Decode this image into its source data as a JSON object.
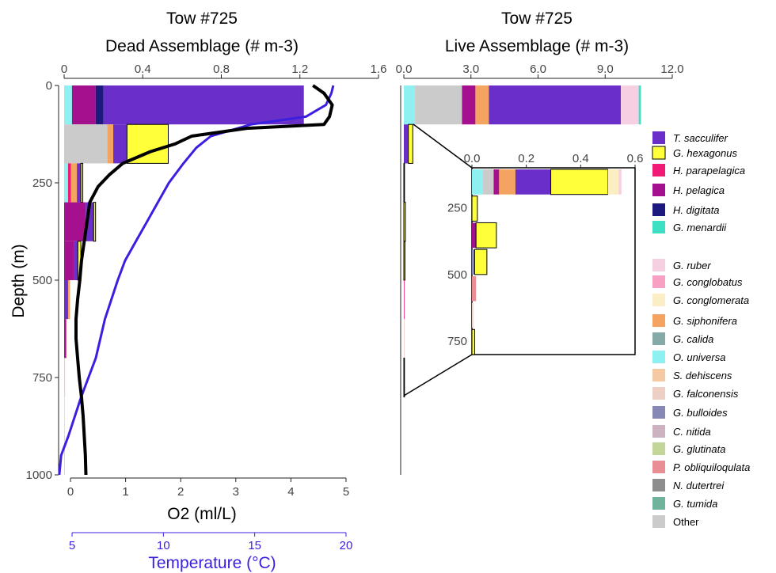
{
  "chart_data": [
    {
      "type": "bar",
      "orientation": "horizontal-stacked",
      "title": "Tow #725",
      "subtitle": "Dead Assemblage (# m-3)",
      "top_axis": {
        "ticks": [
          "0",
          "0.4",
          "0.8",
          "1.2",
          "1.6"
        ],
        "range": [
          0,
          1.6
        ]
      },
      "y_axis": {
        "label": "Depth (m)",
        "ticks": [
          "0",
          "250",
          "500",
          "750",
          "1000"
        ],
        "range": [
          0,
          1000
        ],
        "reversed": true
      },
      "bottom_axis_o2": {
        "label": "O2 (ml/L)",
        "ticks": [
          "0",
          "1",
          "2",
          "3",
          "4",
          "5"
        ],
        "range": [
          0,
          5
        ]
      },
      "bottom_axis_temp": {
        "label": "Temperature (°C)",
        "ticks": [
          "5",
          "10",
          "15",
          "20"
        ],
        "range": [
          5,
          20
        ],
        "color": "#3a1fe0"
      },
      "depth_bins": [
        {
          "top": 0,
          "bottom": 100,
          "segments": [
            {
              "species": "O. universa",
              "value": 0.04
            },
            {
              "species": "H. pelagica",
              "value": 0.12
            },
            {
              "species": "H. digitata",
              "value": 0.04
            },
            {
              "species": "T. sacculifer",
              "value": 1.02
            }
          ]
        },
        {
          "top": 100,
          "bottom": 200,
          "segments": [
            {
              "species": "Other",
              "value": 0.22
            },
            {
              "species": "G. siphonifera",
              "value": 0.03
            },
            {
              "species": "T. sacculifer",
              "value": 0.07
            },
            {
              "species": "G. hexagonus",
              "value": 0.21
            }
          ]
        },
        {
          "top": 200,
          "bottom": 300,
          "segments": [
            {
              "species": "O. universa",
              "value": 0.02
            },
            {
              "species": "H. parapelagica",
              "value": 0.015
            },
            {
              "species": "G. siphonifera",
              "value": 0.03
            },
            {
              "species": "T. sacculifer",
              "value": 0.02
            },
            {
              "species": "G. hexagonus",
              "value": 0.01
            }
          ]
        },
        {
          "top": 300,
          "bottom": 400,
          "segments": [
            {
              "species": "H. pelagica",
              "value": 0.11
            },
            {
              "species": "T. sacculifer",
              "value": 0.04
            },
            {
              "species": "G. hexagonus",
              "value": 0.01
            }
          ]
        },
        {
          "top": 400,
          "bottom": 500,
          "segments": [
            {
              "species": "H. pelagica",
              "value": 0.05
            },
            {
              "species": "T. sacculifer",
              "value": 0.02
            },
            {
              "species": "G. hexagonus",
              "value": 0.015
            }
          ]
        },
        {
          "top": 500,
          "bottom": 600,
          "segments": [
            {
              "species": "T. sacculifer",
              "value": 0.02
            },
            {
              "species": "G. siphonifera",
              "value": 0.01
            }
          ]
        },
        {
          "top": 600,
          "bottom": 700,
          "segments": [
            {
              "species": "H. pelagica",
              "value": 0.01
            },
            {
              "species": "G. falconensis",
              "value": 0.005
            }
          ]
        },
        {
          "top": 700,
          "bottom": 800,
          "segments": [
            {
              "species": "G. falconensis",
              "value": 0.005
            }
          ]
        },
        {
          "top": 800,
          "bottom": 900,
          "segments": [
            {
              "species": "G. falconensis",
              "value": 0.003
            }
          ]
        },
        {
          "top": 900,
          "bottom": 1000,
          "segments": [
            {
              "species": "G. falconensis",
              "value": 0.004
            }
          ]
        }
      ],
      "o2_profile": {
        "depth": [
          0,
          20,
          50,
          80,
          100,
          110,
          130,
          150,
          170,
          200,
          230,
          260,
          300,
          350,
          400,
          450,
          500,
          550,
          600,
          650,
          700,
          750,
          800,
          850,
          900,
          950,
          1000
        ],
        "o2": [
          4.4,
          4.6,
          4.75,
          4.7,
          4.6,
          3.2,
          2.2,
          1.9,
          1.45,
          0.95,
          0.7,
          0.5,
          0.35,
          0.3,
          0.25,
          0.2,
          0.17,
          0.13,
          0.1,
          0.1,
          0.13,
          0.16,
          0.2,
          0.23,
          0.25,
          0.27,
          0.28
        ]
      },
      "temperature_profile": {
        "depth": [
          0,
          20,
          50,
          80,
          100,
          130,
          160,
          200,
          250,
          300,
          350,
          400,
          450,
          500,
          600,
          700,
          800,
          900,
          950,
          1000
        ],
        "temp": [
          19.3,
          19.2,
          18.9,
          17.8,
          14.8,
          12.6,
          11.8,
          11.1,
          10.3,
          9.7,
          9.1,
          8.5,
          7.9,
          7.5,
          6.8,
          6.3,
          5.5,
          4.8,
          4.4,
          4.3
        ]
      }
    },
    {
      "type": "bar",
      "orientation": "horizontal-stacked",
      "title": "Tow #725",
      "subtitle": "Live Assemblage (# m-3)",
      "top_axis": {
        "ticks": [
          "0.0",
          "3.0",
          "6.0",
          "9.0",
          "12.0"
        ],
        "range": [
          0,
          12
        ]
      },
      "depth_bins": [
        {
          "top": 0,
          "bottom": 100,
          "segments": [
            {
              "species": "O. universa",
              "value": 0.5
            },
            {
              "species": "Other",
              "value": 2.1
            },
            {
              "species": "H. pelagica",
              "value": 0.6
            },
            {
              "species": "G. siphonifera",
              "value": 0.6
            },
            {
              "species": "T. sacculifer",
              "value": 5.9
            },
            {
              "species": "G. ruber",
              "value": 0.8
            },
            {
              "species": "G. menardii",
              "value": 0.1
            }
          ]
        },
        {
          "top": 100,
          "bottom": 200,
          "segments": [
            {
              "species": "T. sacculifer",
              "value": 0.2
            },
            {
              "species": "G. hexagonus",
              "value": 0.2
            }
          ]
        },
        {
          "top": 200,
          "bottom": 300,
          "segments": [
            {
              "species": "G. hexagonus",
              "value": 0.03
            }
          ]
        },
        {
          "top": 300,
          "bottom": 400,
          "segments": [
            {
              "species": "G. hexagonus",
              "value": 0.07
            }
          ]
        },
        {
          "top": 400,
          "bottom": 500,
          "segments": [
            {
              "species": "G. hexagonus",
              "value": 0.05
            }
          ]
        },
        {
          "top": 500,
          "bottom": 600,
          "segments": [
            {
              "species": "H. parapelagica",
              "value": 0.01
            }
          ]
        },
        {
          "top": 600,
          "bottom": 700,
          "segments": [
            {
              "species": "G. falconensis",
              "value": 0.005
            }
          ]
        },
        {
          "top": 700,
          "bottom": 800,
          "segments": [
            {
              "species": "G. hexagonus",
              "value": 0.01
            }
          ]
        }
      ],
      "inset": {
        "top_axis": {
          "ticks": [
            "0.0",
            "0.2",
            "0.4",
            "0.6"
          ],
          "range": [
            0,
            0.6
          ]
        },
        "y_axis": {
          "ticks": [
            "250",
            "500",
            "750"
          ]
        },
        "depth_bins": [
          {
            "top": 100,
            "bottom": 200,
            "segments": [
              {
                "species": "O. universa",
                "value": 0.04
              },
              {
                "species": "Other",
                "value": 0.04
              },
              {
                "species": "H. pelagica",
                "value": 0.02
              },
              {
                "species": "G. siphonifera",
                "value": 0.06
              },
              {
                "species": "T. sacculifer",
                "value": 0.13
              },
              {
                "species": "G. hexagonus",
                "value": 0.21
              },
              {
                "species": "G. conglomerata",
                "value": 0.04
              },
              {
                "species": "G. ruber",
                "value": 0.01
              }
            ]
          },
          {
            "top": 200,
            "bottom": 300,
            "segments": [
              {
                "species": "G. hexagonus",
                "value": 0.02
              }
            ]
          },
          {
            "top": 300,
            "bottom": 400,
            "segments": [
              {
                "species": "H. pelagica",
                "value": 0.015
              },
              {
                "species": "G. hexagonus",
                "value": 0.075
              }
            ]
          },
          {
            "top": 400,
            "bottom": 500,
            "segments": [
              {
                "species": "G. bulloides",
                "value": 0.01
              },
              {
                "species": "G. hexagonus",
                "value": 0.045
              }
            ]
          },
          {
            "top": 500,
            "bottom": 600,
            "segments": [
              {
                "species": "P. obliquiloqulata",
                "value": 0.015
              }
            ]
          },
          {
            "top": 600,
            "bottom": 700,
            "segments": [
              {
                "species": "G. falconensis",
                "value": 0.005
              }
            ]
          },
          {
            "top": 700,
            "bottom": 800,
            "segments": [
              {
                "species": "G. hexagonus",
                "value": 0.01
              }
            ]
          }
        ]
      }
    }
  ],
  "legend": [
    {
      "name": "T. sacculifer",
      "color": "#6a2fc8",
      "italic": true
    },
    {
      "name": "G. hexagonus",
      "color": "#ffff3a",
      "italic": true,
      "outlined": true
    },
    {
      "name": "H. parapelagica",
      "color": "#f01b74",
      "italic": true
    },
    {
      "name": "H. pelagica",
      "color": "#a5108f",
      "italic": true
    },
    {
      "name": "H. digitata",
      "color": "#1c1a7e",
      "italic": true
    },
    {
      "name": "G. menardii",
      "color": "#3de0c2",
      "italic": true
    },
    {
      "name": "G. ruber",
      "color": "#f7cfe2",
      "italic": true
    },
    {
      "name": "G. conglobatus",
      "color": "#f7a0c4",
      "italic": true
    },
    {
      "name": "G. conglomerata",
      "color": "#fbedc4",
      "italic": true
    },
    {
      "name": "G. siphonifera",
      "color": "#f4a460",
      "italic": true
    },
    {
      "name": "G. calida",
      "color": "#86aaa8",
      "italic": true
    },
    {
      "name": "O. universa",
      "color": "#8ef0f0",
      "italic": true
    },
    {
      "name": "S. dehiscens",
      "color": "#f5c9a3",
      "italic": true
    },
    {
      "name": "G. falconensis",
      "color": "#eecfc6",
      "italic": true
    },
    {
      "name": "G. bulloides",
      "color": "#8888b6",
      "italic": true
    },
    {
      "name": "C. nitida",
      "color": "#cdb3c0",
      "italic": true
    },
    {
      "name": "G. glutinata",
      "color": "#c4d59a",
      "italic": true
    },
    {
      "name": "P. obliquiloqulata",
      "color": "#ea8e96",
      "italic": true
    },
    {
      "name": "N. dutertrei",
      "color": "#8e8e8e",
      "italic": true
    },
    {
      "name": "G. tumida",
      "color": "#6eb39a",
      "italic": true
    },
    {
      "name": "Other",
      "color": "#cbcbcb",
      "italic": false
    }
  ],
  "colors": {
    "o2_line": "#000000",
    "temperature_line": "#3a1fe0"
  }
}
